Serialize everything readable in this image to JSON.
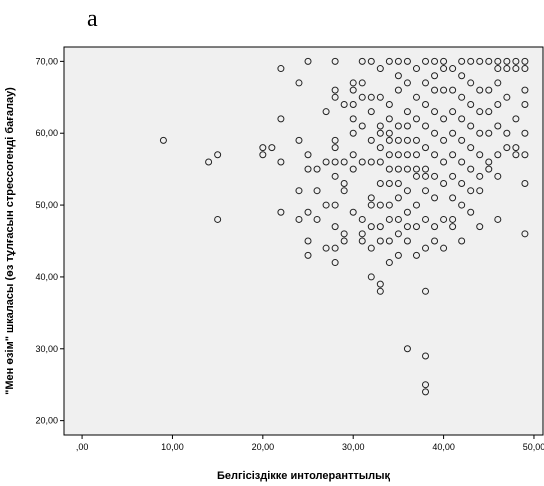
{
  "panel_label": "a",
  "chart_data": {
    "type": "scatter",
    "title": "",
    "xlabel": "Белгісіздікке интолеранттылық",
    "ylabel": "\"Мен өзім\" шкаласы (өз тұлғасын стрессогенді бағалау)",
    "xlim": [
      -2,
      51
    ],
    "ylim": [
      18,
      72
    ],
    "x_ticks": [
      0,
      10,
      20,
      30,
      40,
      50
    ],
    "x_tick_labels": [
      ",00",
      "10,00",
      "20,00",
      "30,00",
      "40,00",
      "50,00"
    ],
    "y_ticks": [
      20,
      30,
      40,
      50,
      60,
      70
    ],
    "y_tick_labels": [
      "20,00",
      "30,00",
      "40,00",
      "50,00",
      "60,00",
      "70,00"
    ],
    "grid": false,
    "colors": {
      "plot_background": "#f0f0f0",
      "marker_stroke": "#222222",
      "frame": "#000000"
    },
    "marker": "open-circle",
    "points": [
      [
        9,
        59
      ],
      [
        14,
        56
      ],
      [
        15,
        57
      ],
      [
        15,
        48
      ],
      [
        20,
        58
      ],
      [
        20,
        57
      ],
      [
        21,
        58
      ],
      [
        22,
        69
      ],
      [
        22,
        62
      ],
      [
        22,
        56
      ],
      [
        22,
        49
      ],
      [
        24,
        67
      ],
      [
        24,
        59
      ],
      [
        24,
        52
      ],
      [
        24,
        48
      ],
      [
        25,
        70
      ],
      [
        25,
        57
      ],
      [
        25,
        55
      ],
      [
        25,
        49
      ],
      [
        25,
        45
      ],
      [
        25,
        43
      ],
      [
        26,
        55
      ],
      [
        26,
        52
      ],
      [
        26,
        48
      ],
      [
        27,
        63
      ],
      [
        27,
        56
      ],
      [
        27,
        50
      ],
      [
        27,
        44
      ],
      [
        28,
        70
      ],
      [
        28,
        66
      ],
      [
        28,
        65
      ],
      [
        28,
        59
      ],
      [
        28,
        58
      ],
      [
        28,
        56
      ],
      [
        28,
        54
      ],
      [
        28,
        50
      ],
      [
        28,
        47
      ],
      [
        28,
        44
      ],
      [
        28,
        42
      ],
      [
        29,
        64
      ],
      [
        29,
        56
      ],
      [
        29,
        53
      ],
      [
        29,
        52
      ],
      [
        29,
        46
      ],
      [
        29,
        45
      ],
      [
        30,
        67
      ],
      [
        30,
        66
      ],
      [
        30,
        64
      ],
      [
        30,
        62
      ],
      [
        30,
        60
      ],
      [
        30,
        57
      ],
      [
        30,
        55
      ],
      [
        30,
        49
      ],
      [
        31,
        70
      ],
      [
        31,
        67
      ],
      [
        31,
        65
      ],
      [
        31,
        61
      ],
      [
        31,
        56
      ],
      [
        31,
        48
      ],
      [
        31,
        46
      ],
      [
        31,
        45
      ],
      [
        32,
        70
      ],
      [
        32,
        65
      ],
      [
        32,
        63
      ],
      [
        32,
        59
      ],
      [
        32,
        56
      ],
      [
        32,
        51
      ],
      [
        32,
        50
      ],
      [
        32,
        47
      ],
      [
        32,
        44
      ],
      [
        32,
        40
      ],
      [
        33,
        69
      ],
      [
        33,
        65
      ],
      [
        33,
        61
      ],
      [
        33,
        60
      ],
      [
        33,
        58
      ],
      [
        33,
        56
      ],
      [
        33,
        53
      ],
      [
        33,
        50
      ],
      [
        33,
        47
      ],
      [
        33,
        45
      ],
      [
        33,
        39
      ],
      [
        33,
        38
      ],
      [
        34,
        70
      ],
      [
        34,
        64
      ],
      [
        34,
        62
      ],
      [
        34,
        60
      ],
      [
        34,
        59
      ],
      [
        34,
        57
      ],
      [
        34,
        55
      ],
      [
        34,
        53
      ],
      [
        34,
        50
      ],
      [
        34,
        48
      ],
      [
        34,
        45
      ],
      [
        34,
        42
      ],
      [
        35,
        70
      ],
      [
        35,
        68
      ],
      [
        35,
        66
      ],
      [
        35,
        61
      ],
      [
        35,
        59
      ],
      [
        35,
        57
      ],
      [
        35,
        55
      ],
      [
        35,
        53
      ],
      [
        35,
        51
      ],
      [
        35,
        48
      ],
      [
        35,
        46
      ],
      [
        35,
        43
      ],
      [
        36,
        70
      ],
      [
        36,
        67
      ],
      [
        36,
        63
      ],
      [
        36,
        61
      ],
      [
        36,
        59
      ],
      [
        36,
        57
      ],
      [
        36,
        55
      ],
      [
        36,
        52
      ],
      [
        36,
        49
      ],
      [
        36,
        47
      ],
      [
        36,
        45
      ],
      [
        36,
        30
      ],
      [
        37,
        69
      ],
      [
        37,
        65
      ],
      [
        37,
        62
      ],
      [
        37,
        59
      ],
      [
        37,
        57
      ],
      [
        37,
        55
      ],
      [
        37,
        54
      ],
      [
        37,
        50
      ],
      [
        37,
        47
      ],
      [
        37,
        43
      ],
      [
        38,
        70
      ],
      [
        38,
        67
      ],
      [
        38,
        64
      ],
      [
        38,
        61
      ],
      [
        38,
        58
      ],
      [
        38,
        55
      ],
      [
        38,
        54
      ],
      [
        38,
        52
      ],
      [
        38,
        48
      ],
      [
        38,
        44
      ],
      [
        38,
        38
      ],
      [
        38,
        29
      ],
      [
        38,
        25
      ],
      [
        38,
        24
      ],
      [
        39,
        70
      ],
      [
        39,
        68
      ],
      [
        39,
        66
      ],
      [
        39,
        63
      ],
      [
        39,
        60
      ],
      [
        39,
        57
      ],
      [
        39,
        54
      ],
      [
        39,
        51
      ],
      [
        39,
        47
      ],
      [
        39,
        45
      ],
      [
        40,
        70
      ],
      [
        40,
        69
      ],
      [
        40,
        66
      ],
      [
        40,
        62
      ],
      [
        40,
        59
      ],
      [
        40,
        56
      ],
      [
        40,
        53
      ],
      [
        40,
        48
      ],
      [
        40,
        44
      ],
      [
        41,
        69
      ],
      [
        41,
        66
      ],
      [
        41,
        63
      ],
      [
        41,
        60
      ],
      [
        41,
        57
      ],
      [
        41,
        54
      ],
      [
        41,
        51
      ],
      [
        41,
        48
      ],
      [
        41,
        47
      ],
      [
        42,
        70
      ],
      [
        42,
        68
      ],
      [
        42,
        65
      ],
      [
        42,
        62
      ],
      [
        42,
        59
      ],
      [
        42,
        56
      ],
      [
        42,
        53
      ],
      [
        42,
        50
      ],
      [
        42,
        45
      ],
      [
        43,
        70
      ],
      [
        43,
        67
      ],
      [
        43,
        64
      ],
      [
        43,
        61
      ],
      [
        43,
        58
      ],
      [
        43,
        55
      ],
      [
        43,
        52
      ],
      [
        43,
        49
      ],
      [
        44,
        70
      ],
      [
        44,
        66
      ],
      [
        44,
        63
      ],
      [
        44,
        60
      ],
      [
        44,
        57
      ],
      [
        44,
        54
      ],
      [
        44,
        52
      ],
      [
        44,
        47
      ],
      [
        45,
        70
      ],
      [
        45,
        66
      ],
      [
        45,
        63
      ],
      [
        45,
        60
      ],
      [
        45,
        56
      ],
      [
        45,
        55
      ],
      [
        46,
        70
      ],
      [
        46,
        69
      ],
      [
        46,
        67
      ],
      [
        46,
        64
      ],
      [
        46,
        61
      ],
      [
        46,
        57
      ],
      [
        46,
        54
      ],
      [
        46,
        48
      ],
      [
        47,
        70
      ],
      [
        47,
        69
      ],
      [
        47,
        65
      ],
      [
        47,
        60
      ],
      [
        47,
        58
      ],
      [
        48,
        70
      ],
      [
        48,
        69
      ],
      [
        48,
        62
      ],
      [
        48,
        58
      ],
      [
        48,
        57
      ],
      [
        49,
        70
      ],
      [
        49,
        69
      ],
      [
        49,
        66
      ],
      [
        49,
        64
      ],
      [
        49,
        60
      ],
      [
        49,
        57
      ],
      [
        49,
        53
      ],
      [
        49,
        46
      ]
    ]
  }
}
